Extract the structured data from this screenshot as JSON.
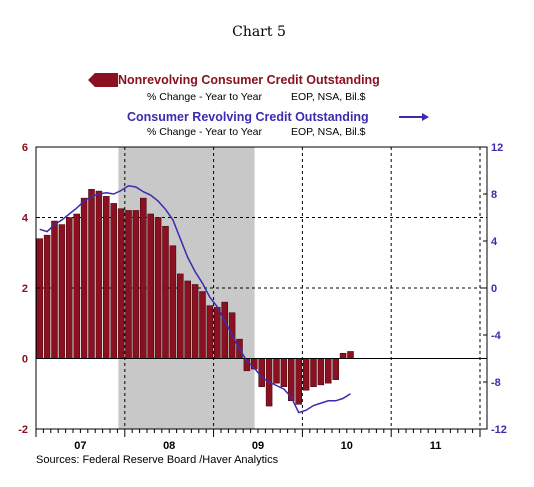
{
  "chart_data": {
    "type": "bar",
    "title": "Chart 5",
    "colors": {
      "bars": "#8b1020",
      "line": "#3a2cb0",
      "left_axis": "#8b1020",
      "right_axis": "#3a2cb0",
      "recession": "#c8c8c8"
    },
    "x_labels": [
      "07",
      "08",
      "09",
      "10",
      "11"
    ],
    "grid": true,
    "recession_shading": {
      "start": "2007-12",
      "end": "2009-06"
    },
    "left_axis": {
      "min": -2,
      "max": 6,
      "ticks": [
        "-2",
        "0",
        "2",
        "4",
        "6"
      ]
    },
    "right_axis": {
      "min": -12,
      "max": 12,
      "ticks": [
        "-12",
        "-8",
        "-4",
        "0",
        "4",
        "8",
        "12"
      ]
    },
    "series": [
      {
        "name": "Nonrevolving Consumer Credit Outstanding",
        "subtitle_left": "% Change - Year to Year",
        "subtitle_right": "EOP, NSA, Bil.$",
        "axis": "left",
        "type": "bar",
        "start": "2007-01",
        "values": [
          3.4,
          3.5,
          3.9,
          3.8,
          4.0,
          4.1,
          4.55,
          4.8,
          4.75,
          4.6,
          4.4,
          4.25,
          4.2,
          4.2,
          4.55,
          4.1,
          4.0,
          3.75,
          3.2,
          2.4,
          2.2,
          2.1,
          1.9,
          1.5,
          1.45,
          1.6,
          1.3,
          0.55,
          -0.35,
          -0.3,
          -0.8,
          -1.35,
          -0.7,
          -0.8,
          -1.2,
          -1.3,
          -0.9,
          -0.8,
          -0.75,
          -0.7,
          -0.6,
          0.15,
          0.2
        ]
      },
      {
        "name": "Consumer Revolving Credit Outstanding",
        "subtitle_left": "% Change - Year to Year",
        "subtitle_right": "EOP, NSA, Bil.$",
        "axis": "right",
        "type": "line",
        "start": "2007-01",
        "values": [
          5.0,
          4.8,
          5.4,
          5.8,
          6.3,
          6.8,
          7.4,
          7.8,
          8.0,
          8.1,
          8.0,
          8.3,
          8.7,
          8.6,
          8.2,
          7.9,
          7.4,
          6.7,
          5.8,
          4.2,
          2.6,
          1.4,
          0.4,
          -0.8,
          -1.6,
          -2.8,
          -4.0,
          -5.2,
          -6.2,
          -6.8,
          -7.6,
          -8.0,
          -8.3,
          -8.6,
          -9.3,
          -10.6,
          -10.4,
          -10.0,
          -9.8,
          -9.6,
          -9.6,
          -9.4,
          -9.0
        ]
      }
    ],
    "source": "Sources:  Federal Reserve Board /Haver Analytics"
  }
}
